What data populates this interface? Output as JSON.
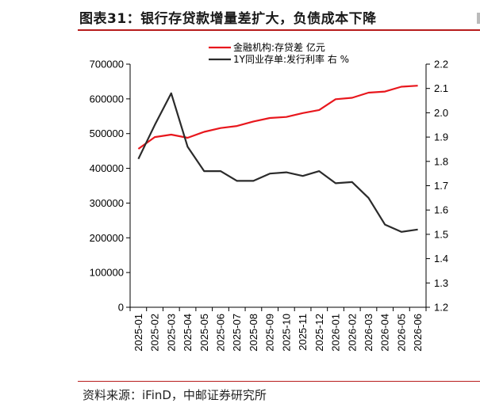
{
  "header": {
    "title": "图表31：银行存贷款增量差扩大，负债成本下降"
  },
  "footer": {
    "source": "资料来源：iFinD，中邮证券研究所"
  },
  "chart_data": {
    "type": "line",
    "categories": [
      "2025-01",
      "2025-02",
      "2025-03",
      "2025-04",
      "2025-05",
      "2025-06",
      "2025-07",
      "2025-08",
      "2025-09",
      "2025-10",
      "2025-11",
      "2025-12",
      "2026-01",
      "2026-02",
      "2026-03",
      "2026-04",
      "2026-05",
      "2026-06"
    ],
    "series": [
      {
        "name": "金融机构:存贷差 亿元",
        "axis": "left",
        "color": "#e8171d",
        "values": [
          456000,
          490000,
          497000,
          488000,
          505000,
          516000,
          522000,
          535000,
          545000,
          548000,
          559000,
          568000,
          599000,
          603000,
          618000,
          621000,
          635000,
          638000
        ]
      },
      {
        "name": "1Y同业存单:发行利率 右 %",
        "axis": "right",
        "color": "#2b2b2b",
        "values": [
          1.81,
          1.95,
          2.08,
          1.86,
          1.76,
          1.76,
          1.72,
          1.72,
          1.75,
          1.755,
          1.74,
          1.76,
          1.71,
          1.715,
          1.65,
          1.54,
          1.51,
          1.52
        ]
      }
    ],
    "y_left": {
      "min": 0,
      "max": 700000,
      "ticks": [
        0,
        100000,
        200000,
        300000,
        400000,
        500000,
        600000,
        700000
      ]
    },
    "y_right": {
      "min": 1.2,
      "max": 2.2,
      "ticks": [
        1.2,
        1.3,
        1.4,
        1.5,
        1.6,
        1.7,
        1.8,
        1.9,
        2.0,
        2.1,
        2.2
      ]
    },
    "legend_position": "top-center",
    "grid": false
  }
}
